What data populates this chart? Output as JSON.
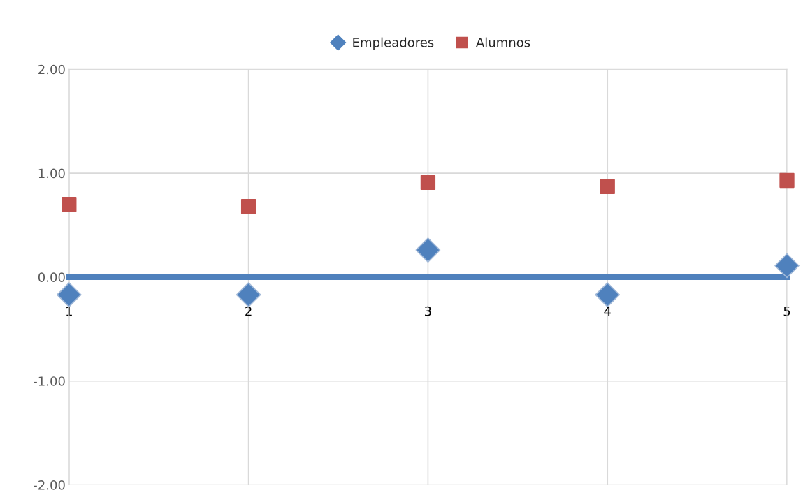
{
  "chart_data": {
    "type": "scatter",
    "x": [
      1,
      2,
      3,
      4,
      5
    ],
    "series": [
      {
        "name": "Empleadores",
        "color": "#4f81bd",
        "marker": "diamond",
        "values": [
          -0.17,
          -0.17,
          0.26,
          -0.17,
          0.11
        ]
      },
      {
        "name": "Alumnos",
        "color": "#c0504d",
        "marker": "square",
        "values": [
          0.7,
          0.68,
          0.91,
          0.87,
          0.93
        ]
      }
    ],
    "xlim": [
      1,
      5
    ],
    "xticks": [
      1,
      2,
      3,
      4,
      5
    ],
    "ylim": [
      -2,
      2
    ],
    "yticks": [
      {
        "value": -2,
        "label": "-2.00"
      },
      {
        "value": -1,
        "label": "-1.00"
      },
      {
        "value": 0,
        "label": "0.00"
      },
      {
        "value": 1,
        "label": "1.00"
      },
      {
        "value": 2,
        "label": "2.00"
      }
    ],
    "grid": true,
    "legend": "top"
  }
}
